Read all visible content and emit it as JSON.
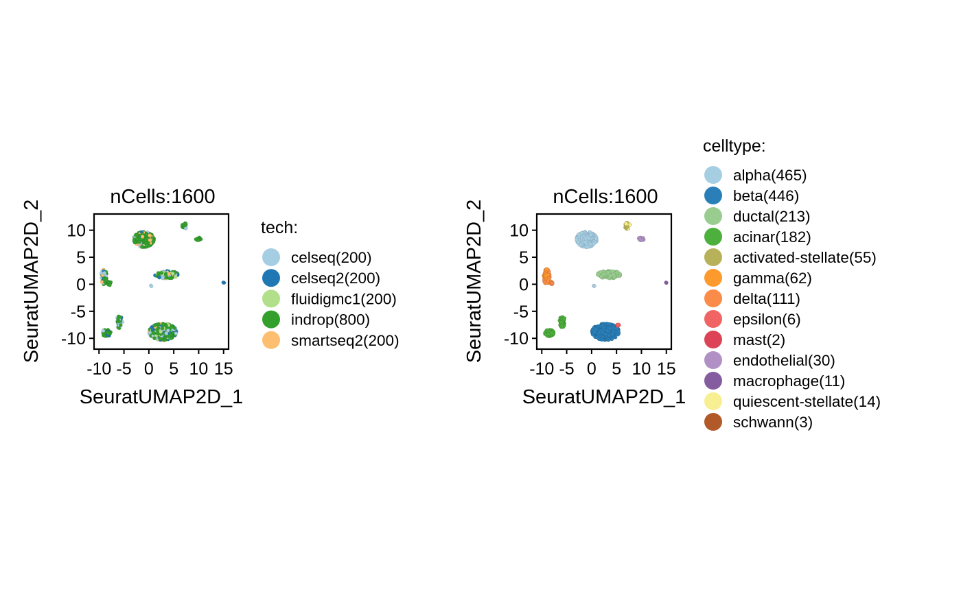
{
  "chart_data": [
    {
      "type": "scatter",
      "title": "nCells:1600",
      "xlabel": "SeuratUMAP2D_1",
      "ylabel": "SeuratUMAP2D_2",
      "xlim": [
        -11,
        16
      ],
      "ylim": [
        -12,
        13
      ],
      "xticks": [
        -10,
        -5,
        0,
        5,
        10,
        15
      ],
      "xtick_labels": [
        "-10",
        "-5",
        "0",
        "5",
        "10",
        "15"
      ],
      "yticks": [
        -10,
        -5,
        0,
        5,
        10
      ],
      "ytick_labels": [
        "-10",
        "-5",
        "0",
        "5",
        "10"
      ],
      "grid": false,
      "legend": {
        "title": "tech:",
        "position": "right",
        "entries": [
          {
            "label": "celseq(200)",
            "color": "#a6cee3"
          },
          {
            "label": "celseq2(200)",
            "color": "#1f78b4"
          },
          {
            "label": "fluidigmc1(200)",
            "color": "#b2df8a"
          },
          {
            "label": "indrop(800)",
            "color": "#33a02c"
          },
          {
            "label": "smartseq2(200)",
            "color": "#fdbf6f"
          }
        ]
      },
      "clusters": [
        {
          "cx": -1.0,
          "cy": 8.3,
          "rx": 2.0,
          "ry": 1.4,
          "n": 360,
          "mix": [
            [
              3,
              0.55
            ],
            [
              4,
              0.25
            ],
            [
              0,
              0.1
            ],
            [
              1,
              0.05
            ],
            [
              2,
              0.05
            ]
          ]
        },
        {
          "cx": 7.2,
          "cy": 10.8,
          "rx": 0.5,
          "ry": 0.6,
          "n": 26,
          "mix": [
            [
              3,
              0.85
            ],
            [
              0,
              0.15
            ]
          ]
        },
        {
          "cx": 10.0,
          "cy": 8.4,
          "rx": 0.6,
          "ry": 0.25,
          "n": 14,
          "mix": [
            [
              3,
              1.0
            ]
          ]
        },
        {
          "cx": 3.5,
          "cy": 1.8,
          "rx": 2.3,
          "ry": 0.7,
          "n": 180,
          "mix": [
            [
              3,
              0.45
            ],
            [
              0,
              0.2
            ],
            [
              1,
              0.15
            ],
            [
              4,
              0.1
            ],
            [
              2,
              0.1
            ]
          ]
        },
        {
          "cx": -9.0,
          "cy": 1.4,
          "rx": 0.6,
          "ry": 1.4,
          "n": 80,
          "mix": [
            [
              3,
              0.5
            ],
            [
              0,
              0.3
            ],
            [
              1,
              0.1
            ],
            [
              4,
              0.1
            ]
          ]
        },
        {
          "cx": -8.0,
          "cy": 0.2,
          "rx": 0.4,
          "ry": 0.4,
          "n": 14,
          "mix": [
            [
              3,
              1.0
            ]
          ]
        },
        {
          "cx": -5.9,
          "cy": -7.0,
          "rx": 0.6,
          "ry": 1.1,
          "n": 55,
          "mix": [
            [
              3,
              0.5
            ],
            [
              0,
              0.3
            ],
            [
              1,
              0.2
            ]
          ]
        },
        {
          "cx": -8.5,
          "cy": -9.0,
          "rx": 0.9,
          "ry": 0.6,
          "n": 45,
          "mix": [
            [
              3,
              0.7
            ],
            [
              0,
              0.15
            ],
            [
              1,
              0.15
            ]
          ]
        },
        {
          "cx": 2.8,
          "cy": -8.8,
          "rx": 2.7,
          "ry": 1.5,
          "n": 560,
          "mix": [
            [
              3,
              0.5
            ],
            [
              2,
              0.2
            ],
            [
              0,
              0.15
            ],
            [
              1,
              0.1
            ],
            [
              4,
              0.05
            ]
          ]
        },
        {
          "cx": 0.5,
          "cy": -0.3,
          "rx": 0.15,
          "ry": 0.15,
          "n": 2,
          "mix": [
            [
              0,
              1.0
            ]
          ]
        },
        {
          "cx": 15.0,
          "cy": 0.3,
          "rx": 0.1,
          "ry": 0.1,
          "n": 2,
          "mix": [
            [
              1,
              1.0
            ]
          ]
        }
      ]
    },
    {
      "type": "scatter",
      "title": "nCells:1600",
      "xlabel": "SeuratUMAP2D_1",
      "ylabel": "SeuratUMAP2D_2",
      "xlim": [
        -11,
        16
      ],
      "ylim": [
        -12,
        13
      ],
      "xticks": [
        -10,
        -5,
        0,
        5,
        10,
        15
      ],
      "xtick_labels": [
        "-10",
        "-5",
        "0",
        "5",
        "10",
        "15"
      ],
      "yticks": [
        -10,
        -5,
        0,
        5,
        10
      ],
      "ytick_labels": [
        "-10",
        "-5",
        "0",
        "5",
        "10"
      ],
      "grid": false,
      "legend": {
        "title": "celltype:",
        "position": "right",
        "entries": [
          {
            "label": "alpha(465)",
            "color": "#a6cee3"
          },
          {
            "label": "beta(446)",
            "color": "#2a7fb8"
          },
          {
            "label": "ductal(213)",
            "color": "#99cd8f"
          },
          {
            "label": "acinar(182)",
            "color": "#4daf3c"
          },
          {
            "label": "activated-stellate(55)",
            "color": "#b7b259"
          },
          {
            "label": "gamma(62)",
            "color": "#fd9a2e"
          },
          {
            "label": "delta(111)",
            "color": "#fb8b48"
          },
          {
            "label": "epsilon(6)",
            "color": "#f06464"
          },
          {
            "label": "mast(2)",
            "color": "#dc4357"
          },
          {
            "label": "endothelial(30)",
            "color": "#b190c6"
          },
          {
            "label": "macrophage(11)",
            "color": "#855c9f"
          },
          {
            "label": "quiescent-stellate(14)",
            "color": "#f7ef91"
          },
          {
            "label": "schwann(3)",
            "color": "#b15928"
          }
        ]
      },
      "clusters": [
        {
          "cx": -1.0,
          "cy": 8.3,
          "rx": 2.0,
          "ry": 1.4,
          "n": 465,
          "mix": [
            [
              0,
              1.0
            ]
          ]
        },
        {
          "cx": 7.2,
          "cy": 10.8,
          "rx": 0.5,
          "ry": 0.6,
          "n": 55,
          "mix": [
            [
              4,
              0.7
            ],
            [
              11,
              0.3
            ]
          ]
        },
        {
          "cx": 10.0,
          "cy": 8.4,
          "rx": 0.6,
          "ry": 0.25,
          "n": 30,
          "mix": [
            [
              9,
              1.0
            ]
          ]
        },
        {
          "cx": 3.5,
          "cy": 1.8,
          "rx": 2.3,
          "ry": 0.7,
          "n": 213,
          "mix": [
            [
              2,
              1.0
            ]
          ]
        },
        {
          "cx": -9.0,
          "cy": 1.4,
          "rx": 0.6,
          "ry": 1.4,
          "n": 173,
          "mix": [
            [
              6,
              0.6
            ],
            [
              5,
              0.4
            ]
          ]
        },
        {
          "cx": -8.0,
          "cy": 0.2,
          "rx": 0.4,
          "ry": 0.4,
          "n": 14,
          "mix": [
            [
              6,
              1.0
            ]
          ]
        },
        {
          "cx": -5.9,
          "cy": -7.0,
          "rx": 0.6,
          "ry": 1.1,
          "n": 80,
          "mix": [
            [
              3,
              1.0
            ]
          ]
        },
        {
          "cx": -8.5,
          "cy": -9.0,
          "rx": 0.9,
          "ry": 0.6,
          "n": 100,
          "mix": [
            [
              3,
              1.0
            ]
          ]
        },
        {
          "cx": 2.8,
          "cy": -8.8,
          "rx": 2.7,
          "ry": 1.5,
          "n": 446,
          "mix": [
            [
              1,
              1.0
            ]
          ]
        },
        {
          "cx": 5.4,
          "cy": -7.6,
          "rx": 0.4,
          "ry": 0.3,
          "n": 8,
          "mix": [
            [
              7,
              0.5
            ],
            [
              5,
              0.5
            ]
          ]
        },
        {
          "cx": 0.5,
          "cy": -0.3,
          "rx": 0.15,
          "ry": 0.15,
          "n": 4,
          "mix": [
            [
              0,
              1.0
            ]
          ]
        },
        {
          "cx": 15.0,
          "cy": 0.3,
          "rx": 0.1,
          "ry": 0.1,
          "n": 3,
          "mix": [
            [
              10,
              1.0
            ]
          ]
        }
      ]
    }
  ]
}
